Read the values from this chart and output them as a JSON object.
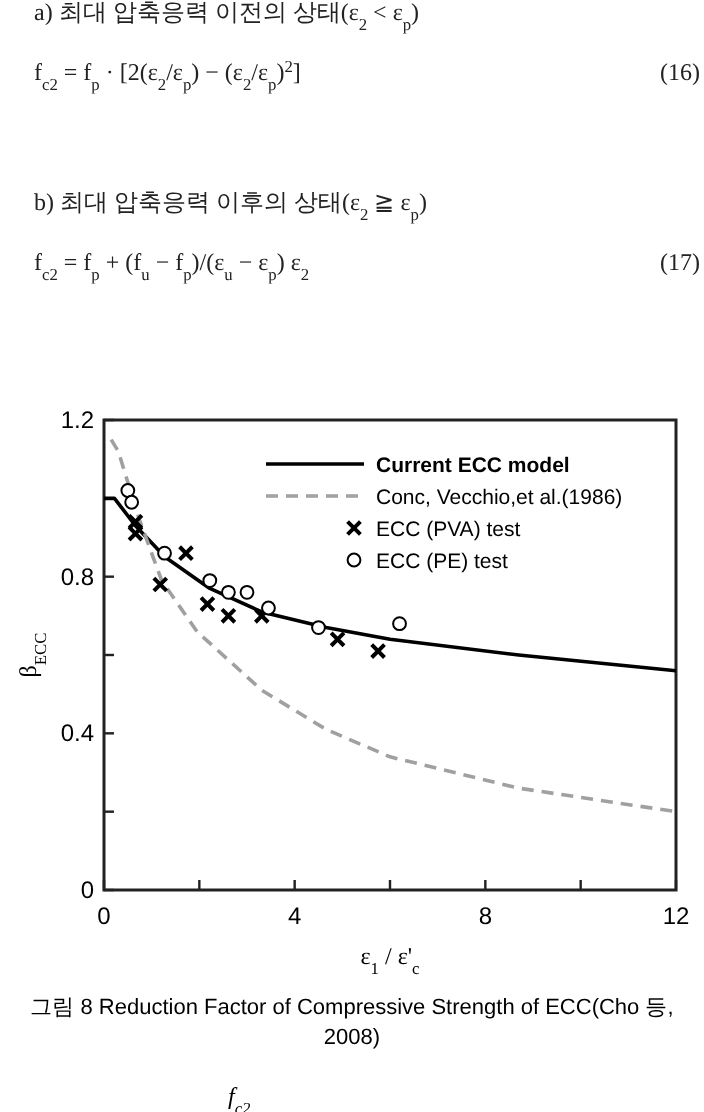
{
  "chart_data": {
    "type": "line",
    "xlabel": "ε$_{1}$ / ε'$_{c}$",
    "ylabel": "β$_{ECC}$",
    "annotations": [
      "a) 최대 압축응력 이전의 상태(ε$_{2}$ < ε$_{p}$)",
      "f$_{c2}$ = f$_{p}$ · [2(ε$_{2}$/ε$_{p}$) − (ε$_{2}$/ε$_{p}$)$^{2}$]",
      "(16)",
      "b) 최대 압축응력 이후의 상태(ε$_{2}$ ≧ ε$_{p}$)",
      "f$_{c2}$ = f$_{p}$ + (f$_{u}$ − f$_{p}$)/(ε$_{u}$ − ε$_{p}$) ε$_{2}$",
      "(17)",
      "그림 8 Reduction Factor of Compressive Strength of ECC(Cho 등, 2008)",
      "f$_{c2}$"
    ],
    "xlim": [
      0,
      12
    ],
    "ylim": [
      0,
      1.2
    ],
    "xticks": [
      0,
      {
        "value": 2,
        "label": null
      },
      4,
      {
        "value": 6,
        "label": null
      },
      8,
      {
        "value": 10,
        "label": null
      },
      12
    ],
    "yticks": [
      0,
      {
        "value": 0.2,
        "label": null
      },
      0.4,
      {
        "value": 0.6,
        "label": null
      },
      0.8,
      {
        "value": 1.0,
        "label": null
      },
      1.2
    ],
    "grid": false,
    "legend": "top right",
    "series": [
      {
        "name": "**Current ECC model**",
        "type": "line",
        "color": "#000000",
        "line_style": "solid",
        "marker": "none",
        "x": [
          0,
          0.22,
          0.66,
          1.28,
          2.22,
          3.31,
          4.66,
          6.0,
          8.7,
          12
        ],
        "values": [
          1.0,
          1.0,
          0.93,
          0.85,
          0.77,
          0.71,
          0.67,
          0.64,
          0.6,
          0.56
        ]
      },
      {
        "name": "Conc, Vecchio,et al.(1986)",
        "type": "line",
        "color": "#a0a0a0",
        "line_style": "dashed",
        "marker": "none",
        "x": [
          0.15,
          0.3,
          0.73,
          1.21,
          1.95,
          3.31,
          4.66,
          6.0,
          8.7,
          12
        ],
        "values": [
          1.15,
          1.12,
          0.95,
          0.79,
          0.66,
          0.51,
          0.41,
          0.34,
          0.26,
          0.2
        ]
      },
      {
        "name": "ECC (PVA) test",
        "type": "scatter",
        "color": "#000000",
        "marker": "cross",
        "x": [
          0.66,
          0.66,
          1.18,
          1.72,
          2.17,
          2.61,
          3.31,
          4.9,
          5.75
        ],
        "values": [
          0.94,
          0.91,
          0.78,
          0.86,
          0.73,
          0.7,
          0.7,
          0.64,
          0.61
        ]
      },
      {
        "name": "ECC (PE) test",
        "type": "scatter",
        "color": "#000000",
        "marker": "circle",
        "x": [
          0.5,
          0.58,
          1.27,
          2.22,
          2.61,
          3.0,
          3.45,
          4.5,
          6.2
        ],
        "values": [
          1.02,
          0.99,
          0.86,
          0.79,
          0.76,
          0.76,
          0.72,
          0.67,
          0.68
        ]
      }
    ]
  }
}
